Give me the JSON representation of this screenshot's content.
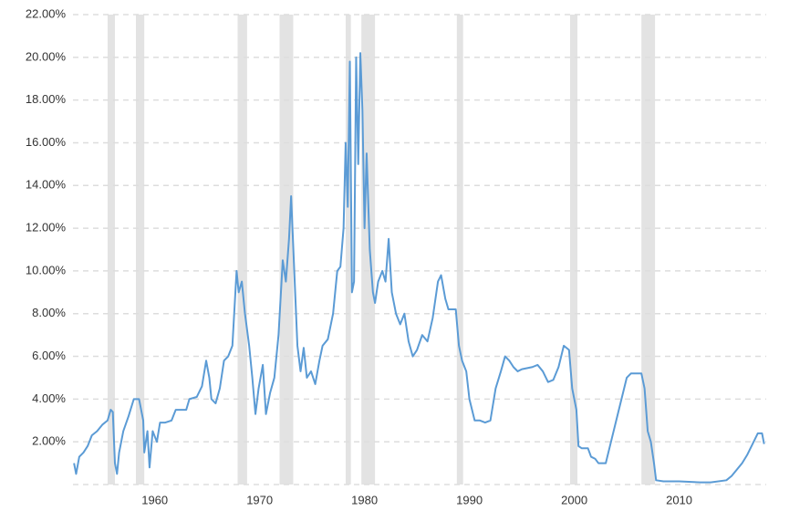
{
  "chart_data": {
    "type": "line",
    "x": [
      1952.3,
      1952.5,
      1952.8,
      1953.2,
      1953.6,
      1954.0,
      1954.5,
      1955.0,
      1955.5,
      1955.8,
      1956.0,
      1956.2,
      1956.4,
      1956.6,
      1957.0,
      1957.5,
      1958.0,
      1958.5,
      1958.9,
      1959.0,
      1959.3,
      1959.5,
      1959.8,
      1960.2,
      1960.5,
      1961.0,
      1961.6,
      1962.0,
      1963.0,
      1963.3,
      1964.0,
      1964.5,
      1964.9,
      1965.2,
      1965.4,
      1965.8,
      1966.2,
      1966.6,
      1967.0,
      1967.4,
      1967.8,
      1968.0,
      1968.3,
      1968.6,
      1969.0,
      1969.3,
      1969.6,
      1969.9,
      1970.3,
      1970.6,
      1971.0,
      1971.4,
      1971.8,
      1972.2,
      1972.5,
      1972.8,
      1973.0,
      1973.3,
      1973.6,
      1973.9,
      1974.2,
      1974.5,
      1974.9,
      1975.3,
      1975.7,
      1976.0,
      1976.5,
      1977.0,
      1977.4,
      1977.7,
      1978.0,
      1978.2,
      1978.4,
      1978.6,
      1978.8,
      1979.0,
      1979.2,
      1979.4,
      1979.6,
      1979.8,
      1980.0,
      1980.2,
      1980.5,
      1980.8,
      1981.0,
      1981.3,
      1981.7,
      1982.0,
      1982.3,
      1982.6,
      1983.0,
      1983.4,
      1983.8,
      1984.2,
      1984.6,
      1985.0,
      1985.5,
      1986.0,
      1986.5,
      1987.0,
      1987.3,
      1987.7,
      1988.0,
      1988.7,
      1989.0,
      1989.3,
      1989.7,
      1990.0,
      1990.5,
      1991.0,
      1991.5,
      1992.0,
      1992.5,
      1993.0,
      1993.4,
      1993.8,
      1994.2,
      1994.6,
      1995.0,
      1996.0,
      1996.5,
      1997.0,
      1997.5,
      1998.0,
      1998.5,
      1999.0,
      1999.5,
      1999.8,
      2000.2,
      2000.4,
      2000.7,
      2001.3,
      2001.6,
      2002.0,
      2002.3,
      2003.0,
      2003.5,
      2004.0,
      2004.5,
      2005.0,
      2005.4,
      2006.0,
      2006.4,
      2006.7,
      2007.0,
      2007.3,
      2007.6,
      2007.8,
      2008.5,
      2010.0,
      2012.0,
      2013.0,
      2014.5,
      2015.0,
      2015.5,
      2016.0,
      2016.5,
      2017.0,
      2017.5,
      2017.9,
      2018.1
    ],
    "values": [
      1.0,
      0.5,
      1.3,
      1.5,
      1.8,
      2.3,
      2.5,
      2.8,
      3.0,
      3.5,
      3.4,
      1.0,
      0.5,
      1.5,
      2.5,
      3.2,
      4.0,
      4.0,
      3.0,
      1.5,
      2.5,
      0.8,
      2.5,
      2.0,
      2.9,
      2.9,
      3.0,
      3.5,
      3.5,
      4.0,
      4.1,
      4.6,
      5.8,
      5.0,
      4.0,
      3.8,
      4.5,
      5.8,
      6.0,
      6.5,
      10.0,
      9.0,
      9.5,
      8.0,
      6.5,
      5.0,
      3.3,
      4.5,
      5.6,
      3.3,
      4.3,
      5.0,
      7.0,
      10.5,
      9.5,
      11.5,
      13.5,
      10.0,
      6.5,
      5.3,
      6.4,
      5.0,
      5.3,
      4.7,
      5.8,
      6.5,
      6.8,
      8.0,
      10.0,
      10.2,
      12.0,
      16.0,
      13.0,
      19.8,
      9.0,
      9.5,
      20.0,
      15.0,
      20.2,
      17.5,
      12.0,
      15.5,
      11.0,
      9.0,
      8.5,
      9.5,
      10.0,
      9.5,
      11.5,
      9.0,
      8.0,
      7.5,
      8.0,
      6.7,
      6.0,
      6.3,
      7.0,
      6.7,
      7.8,
      9.5,
      9.8,
      8.7,
      8.2,
      8.2,
      6.5,
      5.8,
      5.3,
      4.0,
      3.0,
      3.0,
      2.9,
      3.0,
      4.5,
      5.3,
      6.0,
      5.8,
      5.5,
      5.3,
      5.4,
      5.5,
      5.6,
      5.3,
      4.8,
      4.9,
      5.5,
      6.5,
      6.3,
      4.5,
      3.5,
      1.8,
      1.7,
      1.7,
      1.3,
      1.2,
      1.0,
      1.0,
      2.0,
      3.0,
      4.0,
      5.0,
      5.2,
      5.2,
      5.2,
      4.5,
      2.5,
      2.0,
      1.0,
      0.2,
      0.15,
      0.15,
      0.1,
      0.1,
      0.2,
      0.4,
      0.7,
      1.0,
      1.4,
      1.9,
      2.4,
      2.4,
      1.9
    ],
    "color": "#5b9bd5",
    "recessions": [
      [
        1955.5,
        1956.2
      ],
      [
        1958.2,
        1959.0
      ],
      [
        1967.9,
        1968.8
      ],
      [
        1971.9,
        1973.2
      ],
      [
        1978.2,
        1978.7
      ],
      [
        1979.7,
        1981.0
      ],
      [
        1988.8,
        1989.4
      ],
      [
        1999.6,
        2000.3
      ],
      [
        2006.4,
        2007.7
      ]
    ],
    "recession_color": "#e3e3e3",
    "xlim": [
      1952.2,
      2018.3
    ],
    "xticks": [
      1960,
      1970,
      1980,
      1990,
      2000,
      2010
    ],
    "ylim": [
      0,
      22
    ],
    "yticks": [
      {
        "value": 2,
        "label": "2.00%"
      },
      {
        "value": 4,
        "label": "4.00%"
      },
      {
        "value": 6,
        "label": "6.00%"
      },
      {
        "value": 8,
        "label": "8.00%"
      },
      {
        "value": 10,
        "label": "10.00%"
      },
      {
        "value": 12,
        "label": "12.00%"
      },
      {
        "value": 14,
        "label": "14.00%"
      },
      {
        "value": 16,
        "label": "16.00%"
      },
      {
        "value": 18,
        "label": "18.00%"
      },
      {
        "value": 20,
        "label": "20.00%"
      },
      {
        "value": 22,
        "label": "22.00%"
      }
    ],
    "grid": true
  }
}
